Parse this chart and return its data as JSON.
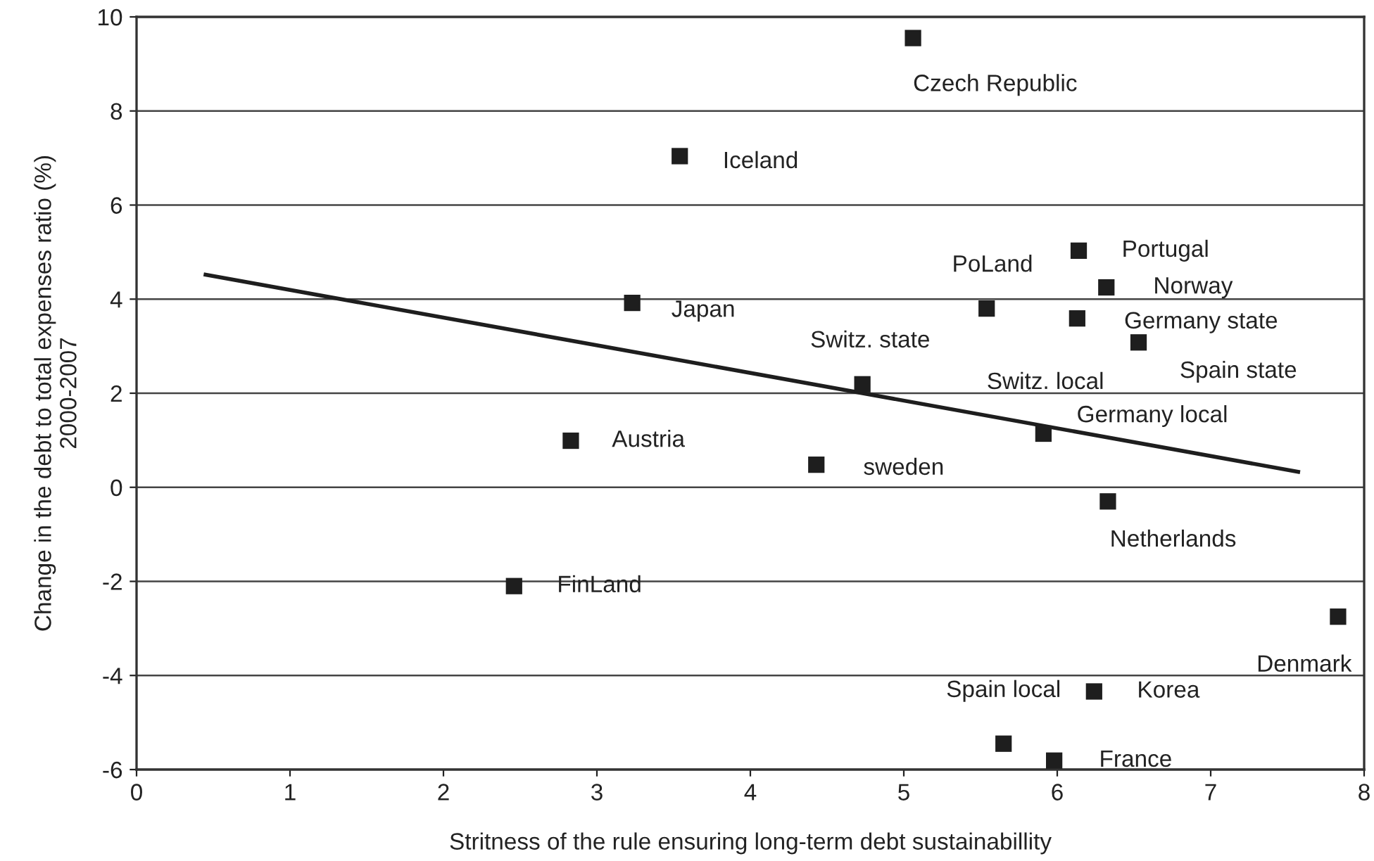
{
  "chart_data": {
    "type": "scatter",
    "xlabel": "Stritness of the rule ensuring long-term debt sustainabillity",
    "ylabel": "Change in the debt to total expenses ratio (%)\n2000-2007",
    "xlim": [
      0,
      8
    ],
    "xticks": [
      0,
      1,
      2,
      3,
      4,
      5,
      6,
      7,
      8
    ],
    "ylim": [
      -6,
      10
    ],
    "yticks": [
      -6,
      -4,
      -2,
      0,
      2,
      4,
      6,
      8,
      10
    ],
    "grid": "y",
    "series": [
      {
        "marker": "square",
        "color": "#1e1e1e",
        "x": [
          5.06,
          3.54,
          3.23,
          2.83,
          2.46,
          4.43,
          4.73,
          5.91,
          5.54,
          6.14,
          6.32,
          6.13,
          6.53,
          6.33,
          7.83,
          6.24,
          5.65,
          5.98
        ],
        "values": [
          9.55,
          7.04,
          3.92,
          0.99,
          -2.1,
          0.48,
          2.19,
          1.14,
          3.8,
          5.03,
          4.25,
          3.59,
          3.08,
          -0.3,
          -2.75,
          -4.34,
          -5.45,
          -5.81
        ]
      },
      {
        "type": "line",
        "color": "#1e1e1e",
        "x": [
          0.45,
          7.57
        ],
        "values": [
          4.52,
          0.33
        ]
      }
    ],
    "annotations": [
      {
        "text": "Czech Republic",
        "x": 5.06,
        "y": 9.55
      },
      {
        "text": "Iceland",
        "x": 3.54,
        "y": 7.04
      },
      {
        "text": "Japan",
        "x": 3.23,
        "y": 3.92
      },
      {
        "text": "Austria",
        "x": 2.83,
        "y": 0.99
      },
      {
        "text": "FinLand",
        "x": 2.46,
        "y": -2.1
      },
      {
        "text": "sweden",
        "x": 4.43,
        "y": 0.48
      },
      {
        "text": "Switz. state",
        "x": 4.73,
        "y": 2.19
      },
      {
        "text": "Switz. local",
        "x": 5.91,
        "y": 1.14
      },
      {
        "text": "Germany local",
        "x": 5.91,
        "y": 1.14
      },
      {
        "text": "PoLand",
        "x": 5.54,
        "y": 3.8
      },
      {
        "text": "Portugal",
        "x": 6.14,
        "y": 5.03
      },
      {
        "text": "Norway",
        "x": 6.32,
        "y": 4.25
      },
      {
        "text": "Germany state",
        "x": 6.13,
        "y": 3.59
      },
      {
        "text": "Spain state",
        "x": 6.53,
        "y": 3.08
      },
      {
        "text": "Netherlands",
        "x": 6.33,
        "y": -0.3
      },
      {
        "text": "Denmark",
        "x": 7.83,
        "y": -2.75
      },
      {
        "text": "Korea",
        "x": 6.24,
        "y": -4.34
      },
      {
        "text": "Spain local",
        "x": 5.65,
        "y": -5.45
      },
      {
        "text": "France",
        "x": 5.98,
        "y": -5.81
      }
    ]
  }
}
